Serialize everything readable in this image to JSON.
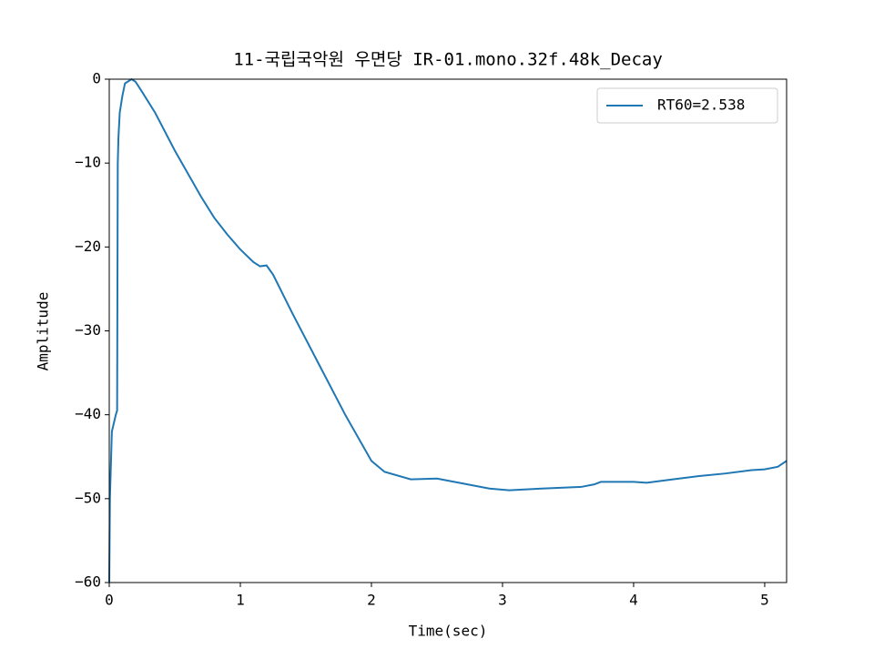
{
  "chart_data": {
    "type": "line",
    "title": "11-국립국악원 우면당 IR-01.mono.32f.48k_Decay",
    "x_label": "Time(sec)",
    "y_label": "Amplitude",
    "x": [
      0,
      0.005,
      0.02,
      0.05,
      0.06,
      0.065,
      0.07,
      0.08,
      0.1,
      0.12,
      0.17,
      0.2,
      0.25,
      0.35,
      0.5,
      0.7,
      0.8,
      0.9,
      1.0,
      1.1,
      1.15,
      1.2,
      1.25,
      1.4,
      1.6,
      1.8,
      2.0,
      2.1,
      2.3,
      2.5,
      2.7,
      2.9,
      3.05,
      3.3,
      3.6,
      3.7,
      3.75,
      4.0,
      4.1,
      4.3,
      4.5,
      4.7,
      4.9,
      5.0,
      5.1,
      5.167
    ],
    "series": [
      {
        "name": "RT60=2.538",
        "color": "#1f77b4",
        "values": [
          -60,
          -50,
          -42,
          -40,
          -39.5,
          -10,
          -7,
          -4,
          -2,
          -0.5,
          0,
          -0.3,
          -1.5,
          -4,
          -8.5,
          -14,
          -16.5,
          -18.5,
          -20.3,
          -21.8,
          -22.3,
          -22.2,
          -23.3,
          -28,
          -34,
          -40,
          -45.5,
          -46.8,
          -47.7,
          -47.6,
          -48.2,
          -48.8,
          -49,
          -48.8,
          -48.6,
          -48.3,
          -48,
          -48,
          -48.1,
          -47.7,
          -47.3,
          -47,
          -46.6,
          -46.5,
          -46.2,
          -45.5
        ]
      }
    ],
    "xlim": [
      0,
      5.167
    ],
    "ylim": [
      -60,
      0
    ],
    "xticks": [
      0,
      1,
      2,
      3,
      4,
      5
    ],
    "yticks": [
      {
        "value": -60,
        "label": "−60"
      },
      {
        "value": -50,
        "label": "−50"
      },
      {
        "value": -40,
        "label": "−40"
      },
      {
        "value": -30,
        "label": "−30"
      },
      {
        "value": -20,
        "label": "−20"
      },
      {
        "value": -10,
        "label": "−10"
      },
      0
    ],
    "legend": "upper right"
  }
}
